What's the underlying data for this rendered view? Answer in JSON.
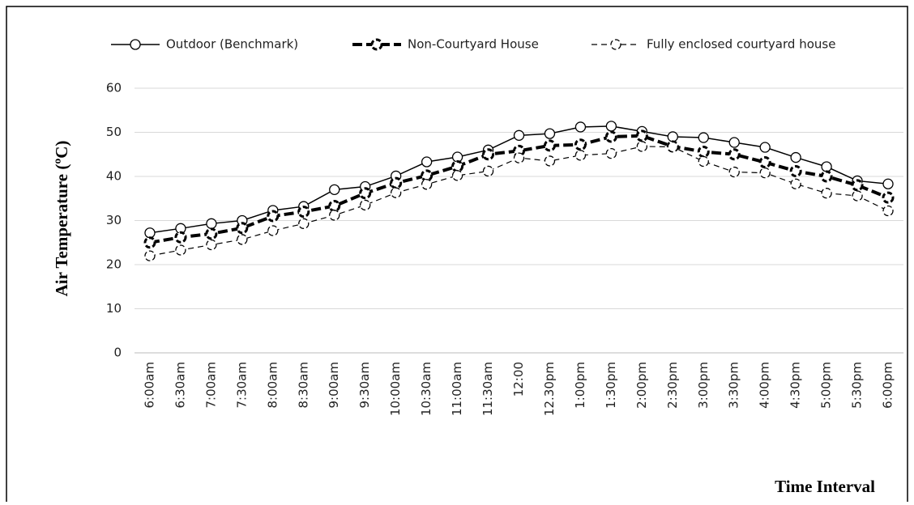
{
  "chart_data": {
    "type": "line",
    "y_label": "Air Temperature (ºC)",
    "x_label": "Time Interval",
    "categories": [
      "6:00am",
      "6:30am",
      "7:00am",
      "7:30am",
      "8:00am",
      "8:30am",
      "9:00am",
      "9:30am",
      "10:00am",
      "10:30am",
      "11:00am",
      "11:30am",
      "12:00",
      "12.30pm",
      "1:00pm",
      "1:30pm",
      "2:00pm",
      "2:30pm",
      "3:00pm",
      "3:30pm",
      "4:00pm",
      "4:30pm",
      "5:00pm",
      "5:30pm",
      "6:00pm"
    ],
    "series": [
      {
        "name": "Outdoor (Benchmark)",
        "color": "#000000",
        "line_style": "solid",
        "line_width": 1.5,
        "values": [
          27.2,
          28.2,
          29.3,
          30,
          32.3,
          33.2,
          37,
          37.7,
          40.1,
          43.3,
          44.4,
          46,
          49.3,
          49.7,
          51.2,
          51.4,
          50.2,
          49,
          48.8,
          47.7,
          46.6,
          44.3,
          42.2,
          39,
          38.3
        ]
      },
      {
        "name": "Non-Courtyard House",
        "color": "#000000",
        "line_style": "dashed",
        "line_width": 4,
        "values": [
          25,
          26.2,
          27,
          28.3,
          31,
          32,
          33.3,
          36.2,
          38.5,
          40.2,
          42.3,
          45,
          45.8,
          47,
          47.2,
          49,
          49.2,
          46.8,
          45.6,
          45,
          43.2,
          41.2,
          40,
          38,
          35.2
        ]
      },
      {
        "name": "Fully enclosed courtyard house",
        "color": "#000000",
        "line_style": "dashed",
        "line_width": 1.2,
        "values": [
          22,
          23.3,
          24.5,
          25.7,
          27.7,
          29.3,
          31.2,
          33.5,
          36.3,
          38.2,
          40.2,
          41.2,
          44.2,
          43.5,
          44.8,
          45.2,
          46.8,
          46.7,
          43.4,
          41,
          40.8,
          38.3,
          36.2,
          35.6,
          32.2
        ]
      }
    ],
    "ylim": [
      0,
      60
    ],
    "yticks": [
      0,
      10,
      20,
      30,
      40,
      50,
      60
    ],
    "grid": true,
    "legend": "top"
  }
}
